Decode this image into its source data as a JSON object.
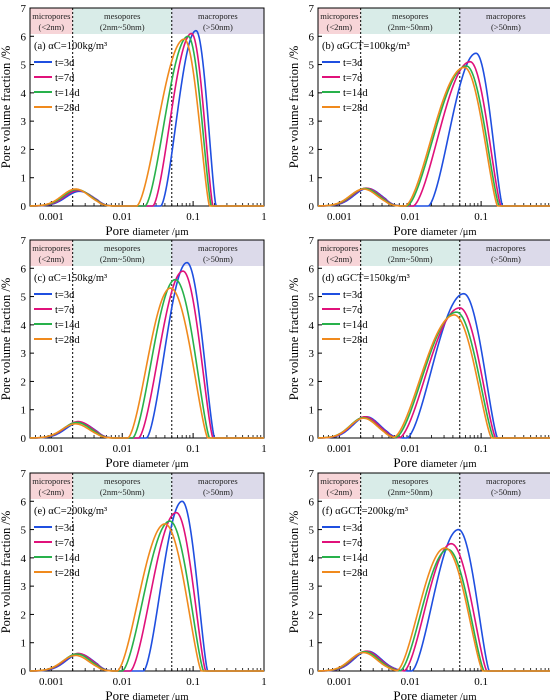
{
  "figure": {
    "ylabel": "Pore volume fraction /%",
    "xlabel_main": "Pore",
    "xlabel_rest": "diameter /μm",
    "bands": [
      {
        "name": "micro",
        "line1": "micropores",
        "line2": "(<2nm)",
        "color": "#f7d5d8"
      },
      {
        "name": "meso",
        "line1": "mesopores",
        "line2": "(2nm~50nm)",
        "color": "#d9ece8"
      },
      {
        "name": "macro",
        "line1": "macropores",
        "line2": "(>50nm)",
        "color": "#dcdaea"
      }
    ],
    "xticks": [
      {
        "v": 0.001,
        "label": "0.001"
      },
      {
        "v": 0.01,
        "label": "0.01"
      },
      {
        "v": 0.1,
        "label": "0.1"
      },
      {
        "v": 1,
        "label": "1"
      }
    ],
    "yticks": [
      "0",
      "1",
      "2",
      "3",
      "4",
      "5",
      "6",
      "7"
    ],
    "legend": [
      "t=3d",
      "t=7d",
      "t=14d",
      "t=28d"
    ],
    "colors": [
      "#1f4fe0",
      "#e0117a",
      "#28b14b",
      "#f08a1d"
    ]
  },
  "chart_data": [
    {
      "type": "line",
      "panel_label": "(a) αC=100kg/m³",
      "xscale": "log",
      "xlim": [
        0.0005,
        1
      ],
      "ylim": [
        0,
        7
      ],
      "boundaries": [
        0.002,
        0.05
      ],
      "series": [
        {
          "name": "t=3d",
          "peak1": {
            "x": 0.0025,
            "y": 0.52
          },
          "trough_x": 0.0045,
          "peak2": {
            "x": 0.11,
            "y": 6.2
          },
          "left": 0.035,
          "right": 0.21
        },
        {
          "name": "t=7d",
          "peak1": {
            "x": 0.0024,
            "y": 0.55
          },
          "trough_x": 0.0045,
          "peak2": {
            "x": 0.095,
            "y": 6.1
          },
          "left": 0.027,
          "right": 0.19
        },
        {
          "name": "t=14d",
          "peak1": {
            "x": 0.0023,
            "y": 0.58
          },
          "trough_x": 0.0045,
          "peak2": {
            "x": 0.085,
            "y": 6.0
          },
          "left": 0.021,
          "right": 0.18
        },
        {
          "name": "t=28d",
          "peak1": {
            "x": 0.0022,
            "y": 0.6
          },
          "trough_x": 0.0045,
          "peak2": {
            "x": 0.075,
            "y": 5.9
          },
          "left": 0.016,
          "right": 0.17
        }
      ]
    },
    {
      "type": "line",
      "panel_label": "(b) αGCT=100kg/m³",
      "xscale": "log",
      "xlim": [
        0.0005,
        1
      ],
      "ylim": [
        0,
        7
      ],
      "boundaries": [
        0.002,
        0.05
      ],
      "series": [
        {
          "name": "t=3d",
          "peak1": {
            "x": 0.0025,
            "y": 0.62
          },
          "trough_x": 0.0045,
          "peak2": {
            "x": 0.085,
            "y": 5.4
          },
          "left": 0.018,
          "right": 0.2
        },
        {
          "name": "t=7d",
          "peak1": {
            "x": 0.0024,
            "y": 0.63
          },
          "trough_x": 0.0045,
          "peak2": {
            "x": 0.07,
            "y": 5.1
          },
          "left": 0.011,
          "right": 0.19
        },
        {
          "name": "t=14d",
          "peak1": {
            "x": 0.0023,
            "y": 0.62
          },
          "trough_x": 0.0045,
          "peak2": {
            "x": 0.062,
            "y": 4.95
          },
          "left": 0.009,
          "right": 0.18
        },
        {
          "name": "t=28d",
          "peak1": {
            "x": 0.0022,
            "y": 0.6
          },
          "trough_x": 0.0045,
          "peak2": {
            "x": 0.058,
            "y": 4.9
          },
          "left": 0.0085,
          "right": 0.17
        }
      ]
    },
    {
      "type": "line",
      "panel_label": "(c) αC=150kg/m³",
      "xscale": "log",
      "xlim": [
        0.0005,
        1
      ],
      "ylim": [
        0,
        7
      ],
      "boundaries": [
        0.002,
        0.05
      ],
      "series": [
        {
          "name": "t=3d",
          "peak1": {
            "x": 0.0025,
            "y": 0.55
          },
          "trough_x": 0.0045,
          "peak2": {
            "x": 0.082,
            "y": 6.2
          },
          "left": 0.022,
          "right": 0.2
        },
        {
          "name": "t=7d",
          "peak1": {
            "x": 0.0024,
            "y": 0.58
          },
          "trough_x": 0.0045,
          "peak2": {
            "x": 0.072,
            "y": 5.9
          },
          "left": 0.017,
          "right": 0.19
        },
        {
          "name": "t=14d",
          "peak1": {
            "x": 0.0023,
            "y": 0.55
          },
          "trough_x": 0.0045,
          "peak2": {
            "x": 0.056,
            "y": 5.6
          },
          "left": 0.014,
          "right": 0.17
        },
        {
          "name": "t=28d",
          "peak1": {
            "x": 0.0022,
            "y": 0.5
          },
          "trough_x": 0.0045,
          "peak2": {
            "x": 0.048,
            "y": 5.3
          },
          "left": 0.012,
          "right": 0.16
        }
      ]
    },
    {
      "type": "line",
      "panel_label": "(d) αGCT=150kg/m³",
      "xscale": "log",
      "xlim": [
        0.0005,
        1
      ],
      "ylim": [
        0,
        7
      ],
      "boundaries": [
        0.002,
        0.05
      ],
      "series": [
        {
          "name": "t=3d",
          "peak1": {
            "x": 0.0024,
            "y": 0.75
          },
          "trough_x": 0.0048,
          "peak2": {
            "x": 0.057,
            "y": 5.1
          },
          "left": 0.009,
          "right": 0.17
        },
        {
          "name": "t=7d",
          "peak1": {
            "x": 0.0023,
            "y": 0.75
          },
          "trough_x": 0.0046,
          "peak2": {
            "x": 0.05,
            "y": 4.6
          },
          "left": 0.007,
          "right": 0.16
        },
        {
          "name": "t=14d",
          "peak1": {
            "x": 0.0022,
            "y": 0.72
          },
          "trough_x": 0.0044,
          "peak2": {
            "x": 0.045,
            "y": 4.45
          },
          "left": 0.0062,
          "right": 0.15
        },
        {
          "name": "t=28d",
          "peak1": {
            "x": 0.0022,
            "y": 0.7
          },
          "trough_x": 0.0043,
          "peak2": {
            "x": 0.042,
            "y": 4.35
          },
          "left": 0.0058,
          "right": 0.14
        }
      ]
    },
    {
      "type": "line",
      "panel_label": "(e) αC=200kg/m³",
      "xscale": "log",
      "xlim": [
        0.0005,
        1
      ],
      "ylim": [
        0,
        7
      ],
      "boundaries": [
        0.002,
        0.05
      ],
      "series": [
        {
          "name": "t=3d",
          "peak1": {
            "x": 0.0025,
            "y": 0.6
          },
          "trough_x": 0.0045,
          "peak2": {
            "x": 0.07,
            "y": 6.0
          },
          "left": 0.02,
          "right": 0.16
        },
        {
          "name": "t=7d",
          "peak1": {
            "x": 0.0024,
            "y": 0.62
          },
          "trough_x": 0.0045,
          "peak2": {
            "x": 0.058,
            "y": 5.6
          },
          "left": 0.013,
          "right": 0.15
        },
        {
          "name": "t=14d",
          "peak1": {
            "x": 0.0023,
            "y": 0.6
          },
          "trough_x": 0.0045,
          "peak2": {
            "x": 0.047,
            "y": 5.3
          },
          "left": 0.01,
          "right": 0.14
        },
        {
          "name": "t=28d",
          "peak1": {
            "x": 0.0022,
            "y": 0.55
          },
          "trough_x": 0.0045,
          "peak2": {
            "x": 0.04,
            "y": 5.2
          },
          "left": 0.0085,
          "right": 0.13
        }
      ]
    },
    {
      "type": "line",
      "panel_label": "(f) αGCT=200kg/m³",
      "xscale": "log",
      "xlim": [
        0.0005,
        1
      ],
      "ylim": [
        0,
        7
      ],
      "boundaries": [
        0.002,
        0.05
      ],
      "series": [
        {
          "name": "t=3d",
          "peak1": {
            "x": 0.0025,
            "y": 0.7
          },
          "trough_x": 0.0062,
          "peak2": {
            "x": 0.048,
            "y": 5.0
          },
          "left": 0.0105,
          "right": 0.13
        },
        {
          "name": "t=7d",
          "peak1": {
            "x": 0.0024,
            "y": 0.7
          },
          "trough_x": 0.0058,
          "peak2": {
            "x": 0.038,
            "y": 4.5
          },
          "left": 0.0082,
          "right": 0.12
        },
        {
          "name": "t=14d",
          "peak1": {
            "x": 0.0023,
            "y": 0.68
          },
          "trough_x": 0.0054,
          "peak2": {
            "x": 0.034,
            "y": 4.3
          },
          "left": 0.0072,
          "right": 0.11
        },
        {
          "name": "t=28d",
          "peak1": {
            "x": 0.0022,
            "y": 0.65
          },
          "trough_x": 0.005,
          "peak2": {
            "x": 0.031,
            "y": 4.35
          },
          "left": 0.0065,
          "right": 0.105
        }
      ]
    }
  ]
}
